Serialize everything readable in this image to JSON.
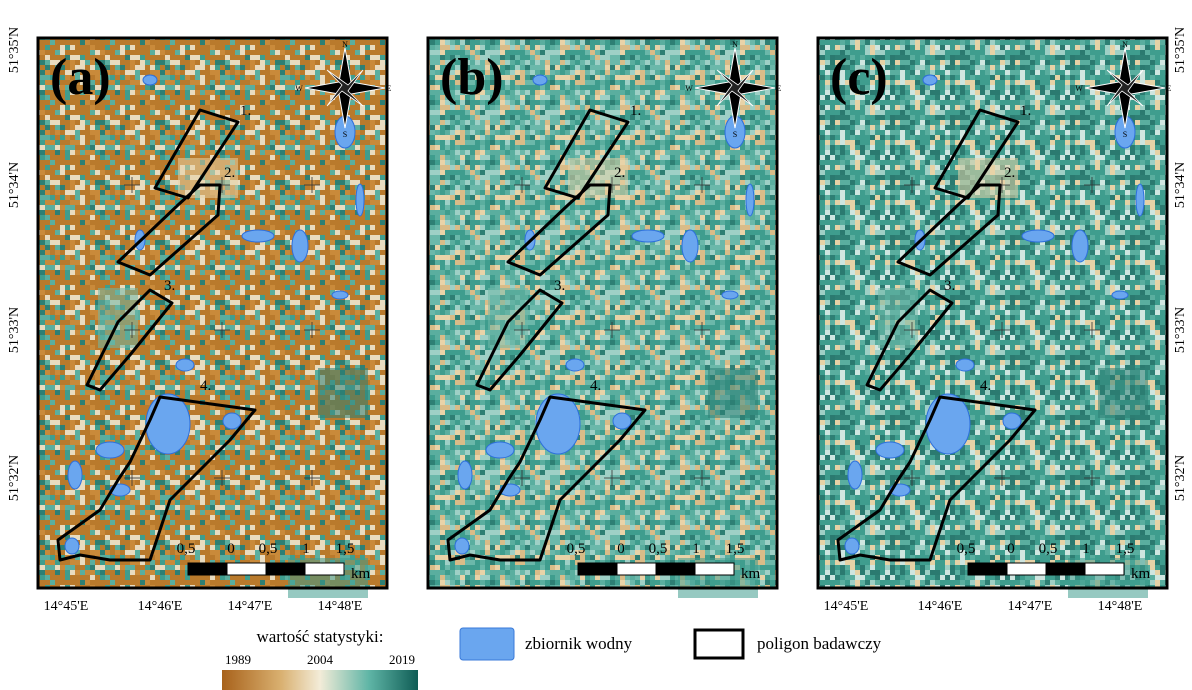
{
  "panels": [
    {
      "label": "(a)",
      "polygon_labels": [
        "1.",
        "2.",
        "3.",
        "4."
      ]
    },
    {
      "label": "(b)",
      "polygon_labels": [
        "1.",
        "2.",
        "3.",
        "4."
      ]
    },
    {
      "label": "(c)",
      "polygon_labels": [
        "1.",
        "2.",
        "3.",
        "4."
      ]
    }
  ],
  "compass_letters": [
    "N",
    "E",
    "S",
    "W"
  ],
  "latitude_labels": [
    "51°35'N",
    "51°34'N",
    "51°33'N",
    "51°32'N"
  ],
  "longitude_labels": [
    "14°45'E",
    "14°46'E",
    "14°47'E",
    "14°48'E"
  ],
  "scale_bar": {
    "labels": [
      "0,5",
      "0",
      "0,5",
      "1",
      "1,5"
    ],
    "unit": "km"
  },
  "legend": {
    "title": "wartość statystyki:",
    "ticks": [
      "1989",
      "2004",
      "2019"
    ],
    "water": "zbiornik wodny",
    "polygon": "poligon badawczy"
  }
}
